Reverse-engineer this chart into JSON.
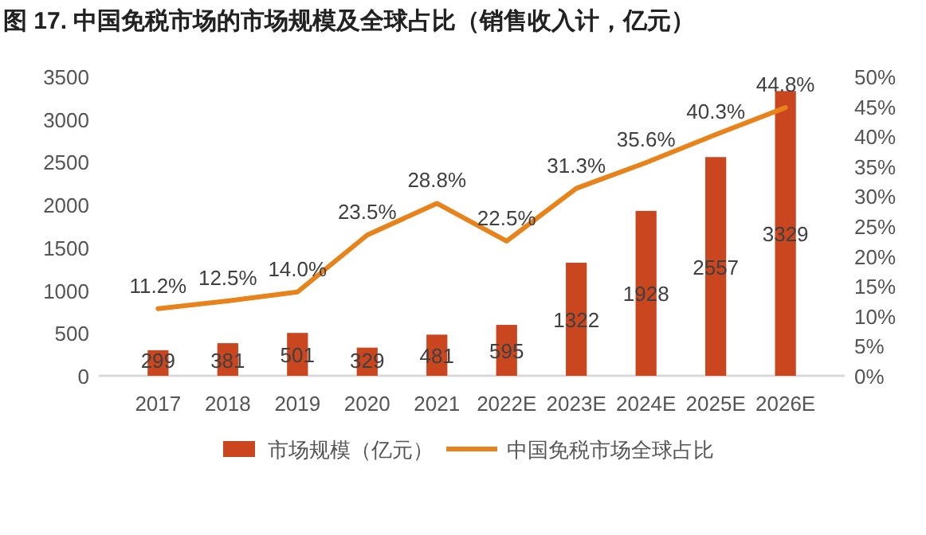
{
  "chart_data": {
    "type": "bar",
    "title": "图 17. 中国免税市场的市场规模及全球占比（销售收入计，亿元）",
    "categories": [
      "2017",
      "2018",
      "2019",
      "2020",
      "2021",
      "2022E",
      "2023E",
      "2024E",
      "2025E",
      "2026E"
    ],
    "series": [
      {
        "name": "市场规模（亿元）",
        "color": "#c9461f",
        "values": [
          299,
          381,
          501,
          329,
          481,
          595,
          1322,
          1928,
          2557,
          3329
        ]
      },
      {
        "name": "中国免税市场全球占比",
        "type": "line",
        "axis": "y2",
        "color": "#e8821a",
        "values": [
          11.2,
          12.5,
          14.0,
          23.5,
          28.8,
          22.5,
          31.3,
          35.6,
          40.3,
          44.8
        ],
        "value_labels": [
          "11.2%",
          "12.5%",
          "14.0%",
          "23.5%",
          "28.8%",
          "22.5%",
          "31.3%",
          "35.6%",
          "40.3%",
          "44.8%"
        ]
      }
    ],
    "ylim": [
      0,
      3500
    ],
    "yticks": [
      0,
      500,
      1000,
      1500,
      2000,
      2500,
      3000,
      3500
    ],
    "y2lim": [
      0,
      50
    ],
    "y2ticks": [
      {
        "value": 0,
        "label": "0%"
      },
      {
        "value": 5,
        "label": "5%"
      },
      {
        "value": 10,
        "label": "10%"
      },
      {
        "value": 15,
        "label": "15%"
      },
      {
        "value": 20,
        "label": "20%"
      },
      {
        "value": 25,
        "label": "25%"
      },
      {
        "value": 30,
        "label": "30%"
      },
      {
        "value": 35,
        "label": "35%"
      },
      {
        "value": 40,
        "label": "40%"
      },
      {
        "value": 45,
        "label": "45%"
      },
      {
        "value": 50,
        "label": "50%"
      }
    ],
    "data_labels": true,
    "legend": "bottom",
    "grid": false
  }
}
